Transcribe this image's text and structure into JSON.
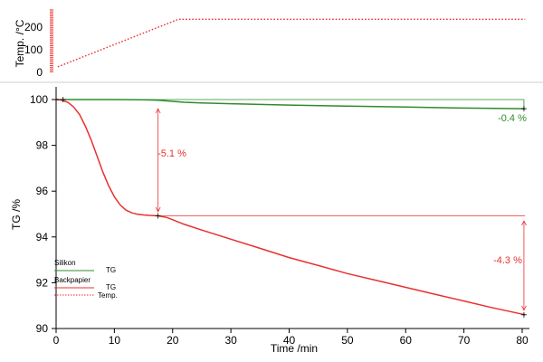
{
  "chart_data": [
    {
      "type": "line",
      "ylabel": "Temp. /°C",
      "ylim": [
        0,
        230
      ],
      "yticks": [
        0,
        100,
        200
      ],
      "xlim": [
        0,
        81
      ],
      "series": [
        {
          "name": "Temp.",
          "color": "#e8312e",
          "style": "dotted",
          "x": [
            0.3,
            21,
            80.5
          ],
          "y": [
            25,
            235,
            235
          ]
        }
      ],
      "tick_marks_at_x0": true
    },
    {
      "type": "line",
      "xlabel": "Time /min",
      "ylabel": "TG /%",
      "xlim": [
        0,
        81
      ],
      "ylim": [
        90,
        100.3
      ],
      "xticks": [
        0,
        10,
        20,
        30,
        40,
        50,
        60,
        70,
        80
      ],
      "yticks": [
        90,
        92,
        94,
        96,
        98,
        100
      ],
      "series": [
        {
          "name": "Silikon",
          "color": "#2e8b2e",
          "x": [
            0,
            5,
            10,
            15,
            17.5,
            20,
            22,
            25,
            30,
            40,
            50,
            60,
            70,
            80.5
          ],
          "y": [
            100,
            100,
            100,
            99.99,
            99.97,
            99.92,
            99.88,
            99.85,
            99.82,
            99.76,
            99.71,
            99.67,
            99.63,
            99.6
          ]
        },
        {
          "name": "Backpapier",
          "color": "#e8312e",
          "x": [
            0,
            1,
            2,
            3,
            4,
            5,
            6,
            7,
            8,
            9,
            10,
            11,
            12,
            13,
            14,
            15,
            16,
            17.5,
            19,
            20,
            22,
            25,
            30,
            35,
            40,
            45,
            50,
            55,
            60,
            65,
            70,
            75,
            80.5
          ],
          "y": [
            100,
            99.97,
            99.88,
            99.68,
            99.35,
            98.85,
            98.25,
            97.55,
            96.85,
            96.25,
            95.75,
            95.4,
            95.17,
            95.05,
            94.99,
            94.96,
            94.94,
            94.92,
            94.85,
            94.75,
            94.55,
            94.3,
            93.9,
            93.5,
            93.1,
            92.75,
            92.4,
            92.1,
            91.8,
            91.5,
            91.2,
            90.9,
            90.6
          ]
        }
      ],
      "annotations": [
        {
          "text": "-0.4 %",
          "color": "#2e8b2e"
        },
        {
          "text": "-5.1 %",
          "color": "#e8312e"
        },
        {
          "text": "-4.3 %",
          "color": "#e8312e"
        }
      ],
      "legend": {
        "placement": "bottom-left",
        "groups": [
          {
            "title": "Silikon",
            "entries": [
              {
                "label": "TG",
                "color": "#2e8b2e",
                "style": "solid"
              }
            ]
          },
          {
            "title": "Backpapier",
            "entries": [
              {
                "label": "TG",
                "color": "#e8312e",
                "style": "solid"
              },
              {
                "label": "Temp.",
                "color": "#e8312e",
                "style": "dotted"
              }
            ]
          }
        ]
      }
    }
  ]
}
